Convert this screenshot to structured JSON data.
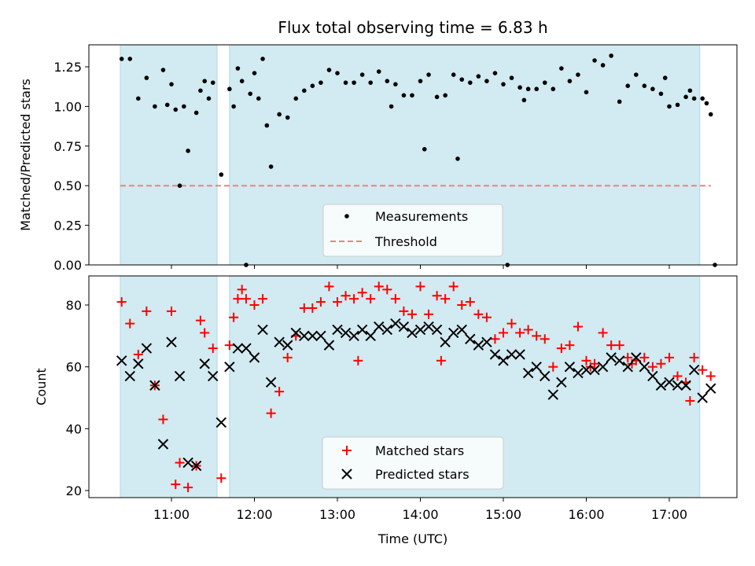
{
  "chart_data": [
    {
      "type": "scatter",
      "title": "Flux total observing time = 6.83 h",
      "xlabel": "",
      "ylabel": "Matched/Predicted stars",
      "xlim": [
        "10:00",
        "17:45"
      ],
      "ylim": [
        0,
        1.4
      ],
      "yticks": [
        "0.00",
        "0.25",
        "0.50",
        "0.75",
        "1.00",
        "1.25"
      ],
      "xtick_labels_shown": false,
      "shaded_regions": [
        [
          "10:23",
          "11:33"
        ],
        [
          "11:42",
          "17:22"
        ]
      ],
      "shade_color": "#add8e6",
      "threshold": 0.5,
      "legend_position": "lower center",
      "series": [
        {
          "name": "Measurements",
          "color": "#000000",
          "marker": "dot",
          "x": [
            "10:24",
            "10:30",
            "10:36",
            "10:42",
            "10:48",
            "10:54",
            "11:00",
            "11:06",
            "11:12",
            "11:18",
            "11:24",
            "11:30",
            "11:36",
            "11:42",
            "11:48",
            "11:54",
            "12:00",
            "12:06",
            "12:12",
            "12:18",
            "12:24",
            "12:30",
            "12:36",
            "12:42",
            "12:48",
            "12:54",
            "13:00",
            "13:06",
            "13:12",
            "13:18",
            "13:24",
            "13:30",
            "13:36",
            "13:42",
            "13:48",
            "13:54",
            "14:00",
            "14:06",
            "14:12",
            "14:18",
            "14:24",
            "14:30",
            "14:36",
            "14:42",
            "14:48",
            "14:54",
            "15:00",
            "15:06",
            "15:12",
            "15:18",
            "15:24",
            "15:30",
            "15:36",
            "15:42",
            "15:48",
            "15:54",
            "16:00",
            "16:06",
            "16:12",
            "16:18",
            "16:24",
            "16:30",
            "16:36",
            "16:42",
            "16:48",
            "16:54",
            "17:00",
            "17:06",
            "17:12",
            "17:18",
            "17:24",
            "17:30",
            "10:57",
            "11:03",
            "11:09",
            "11:21",
            "11:27",
            "11:45",
            "11:51",
            "11:57",
            "12:03",
            "12:09",
            "13:39",
            "14:03",
            "14:27",
            "15:03",
            "15:15",
            "16:57",
            "17:15",
            "17:27",
            "17:33"
          ],
          "y": [
            1.3,
            1.3,
            1.05,
            1.18,
            1.0,
            1.23,
            1.14,
            0.5,
            0.72,
            0.96,
            1.16,
            1.15,
            0.57,
            1.11,
            1.24,
            0.0,
            1.21,
            1.3,
            0.62,
            0.95,
            0.93,
            1.05,
            1.1,
            1.13,
            1.15,
            1.23,
            1.21,
            1.15,
            1.15,
            1.2,
            1.15,
            1.22,
            1.16,
            1.14,
            1.07,
            1.07,
            1.16,
            1.2,
            1.06,
            1.07,
            1.2,
            1.17,
            1.15,
            1.19,
            1.16,
            1.21,
            1.14,
            1.18,
            1.12,
            1.11,
            1.11,
            1.15,
            1.11,
            1.24,
            1.16,
            1.2,
            1.09,
            1.29,
            1.26,
            1.32,
            1.03,
            1.13,
            1.2,
            1.13,
            1.11,
            1.08,
            1.0,
            1.01,
            1.06,
            1.05,
            1.05,
            0.95,
            1.01,
            0.98,
            1.0,
            1.1,
            1.05,
            1.0,
            1.16,
            1.08,
            1.05,
            0.88,
            1.0,
            0.73,
            0.67,
            0.0,
            1.04,
            1.18,
            1.1,
            1.02,
            0.0
          ]
        },
        {
          "name": "Threshold",
          "color": "#f08080",
          "style": "dashed",
          "x": [
            "10:23",
            "17:30"
          ],
          "y": [
            0.5,
            0.5
          ]
        }
      ]
    },
    {
      "type": "scatter",
      "title": "",
      "xlabel": "Time (UTC)",
      "ylabel": "Count",
      "xlim": [
        "10:00",
        "17:45"
      ],
      "ylim": [
        18,
        89
      ],
      "yticks": [
        "20",
        "40",
        "60",
        "80"
      ],
      "xticks": [
        "11:00",
        "12:00",
        "13:00",
        "14:00",
        "15:00",
        "16:00",
        "17:00"
      ],
      "shaded_regions": [
        [
          "10:23",
          "11:33"
        ],
        [
          "11:42",
          "17:22"
        ]
      ],
      "shade_color": "#add8e6",
      "legend_position": "lower center",
      "series": [
        {
          "name": "Matched stars",
          "color": "#ff0000",
          "marker": "plus",
          "x": [
            "10:24",
            "10:30",
            "10:36",
            "10:42",
            "10:48",
            "10:54",
            "11:00",
            "11:06",
            "11:12",
            "11:18",
            "11:24",
            "11:30",
            "11:36",
            "11:42",
            "11:48",
            "11:54",
            "12:00",
            "12:06",
            "12:12",
            "12:18",
            "12:24",
            "12:30",
            "12:36",
            "12:42",
            "12:48",
            "12:54",
            "13:00",
            "13:06",
            "13:12",
            "13:18",
            "13:24",
            "13:30",
            "13:36",
            "13:42",
            "13:48",
            "13:54",
            "14:00",
            "14:06",
            "14:12",
            "14:18",
            "14:24",
            "14:30",
            "14:36",
            "14:42",
            "14:48",
            "14:54",
            "15:00",
            "15:06",
            "15:12",
            "15:18",
            "15:24",
            "15:30",
            "15:36",
            "15:42",
            "15:48",
            "15:54",
            "16:00",
            "16:06",
            "16:12",
            "16:18",
            "16:24",
            "16:30",
            "16:36",
            "16:42",
            "16:48",
            "16:54",
            "17:00",
            "17:06",
            "17:12",
            "17:18",
            "17:24",
            "17:30",
            "11:03",
            "11:21",
            "11:45",
            "11:51",
            "13:15",
            "14:15",
            "16:03",
            "16:33",
            "17:15"
          ],
          "y": [
            81,
            74,
            64,
            78,
            54,
            43,
            78,
            29,
            21,
            28,
            71,
            66,
            24,
            67,
            82,
            82,
            80,
            82,
            45,
            52,
            63,
            70,
            79,
            79,
            81,
            86,
            81,
            83,
            82,
            84,
            82,
            86,
            85,
            82,
            78,
            77,
            86,
            77,
            83,
            82,
            86,
            80,
            81,
            77,
            76,
            69,
            71,
            74,
            71,
            72,
            70,
            69,
            60,
            66,
            67,
            73,
            62,
            61,
            71,
            67,
            67,
            63,
            62,
            63,
            60,
            61,
            63,
            57,
            55,
            63,
            59,
            57,
            22,
            75,
            76,
            85,
            62,
            62,
            60,
            61,
            49
          ],
          "note": "approximate readings"
        },
        {
          "name": "Predicted stars",
          "color": "#000000",
          "marker": "x",
          "x": [
            "10:24",
            "10:30",
            "10:36",
            "10:42",
            "10:48",
            "10:54",
            "11:00",
            "11:06",
            "11:12",
            "11:18",
            "11:24",
            "11:30",
            "11:36",
            "11:42",
            "11:48",
            "11:54",
            "12:00",
            "12:06",
            "12:12",
            "12:18",
            "12:24",
            "12:30",
            "12:36",
            "12:42",
            "12:48",
            "12:54",
            "13:00",
            "13:06",
            "13:12",
            "13:18",
            "13:24",
            "13:30",
            "13:36",
            "13:42",
            "13:48",
            "13:54",
            "14:00",
            "14:06",
            "14:12",
            "14:18",
            "14:24",
            "14:30",
            "14:36",
            "14:42",
            "14:48",
            "14:54",
            "15:00",
            "15:06",
            "15:12",
            "15:18",
            "15:24",
            "15:30",
            "15:36",
            "15:42",
            "15:48",
            "15:54",
            "16:00",
            "16:06",
            "16:12",
            "16:18",
            "16:24",
            "16:30",
            "16:36",
            "16:42",
            "16:48",
            "16:54",
            "17:00",
            "17:06",
            "17:12",
            "17:18",
            "17:24",
            "17:30"
          ],
          "y": [
            62,
            57,
            61,
            66,
            54,
            35,
            68,
            57,
            29,
            28,
            61,
            57,
            42,
            60,
            66,
            66,
            63,
            72,
            55,
            68,
            67,
            71,
            70,
            70,
            70,
            67,
            72,
            71,
            70,
            72,
            70,
            73,
            72,
            74,
            73,
            71,
            72,
            73,
            72,
            68,
            71,
            72,
            69,
            67,
            68,
            64,
            62,
            64,
            64,
            58,
            60,
            57,
            51,
            55,
            60,
            58,
            59,
            59,
            60,
            63,
            62,
            60,
            63,
            60,
            57,
            54,
            55,
            54,
            54,
            59,
            50,
            53
          ],
          "note": "approximate readings"
        }
      ]
    }
  ]
}
